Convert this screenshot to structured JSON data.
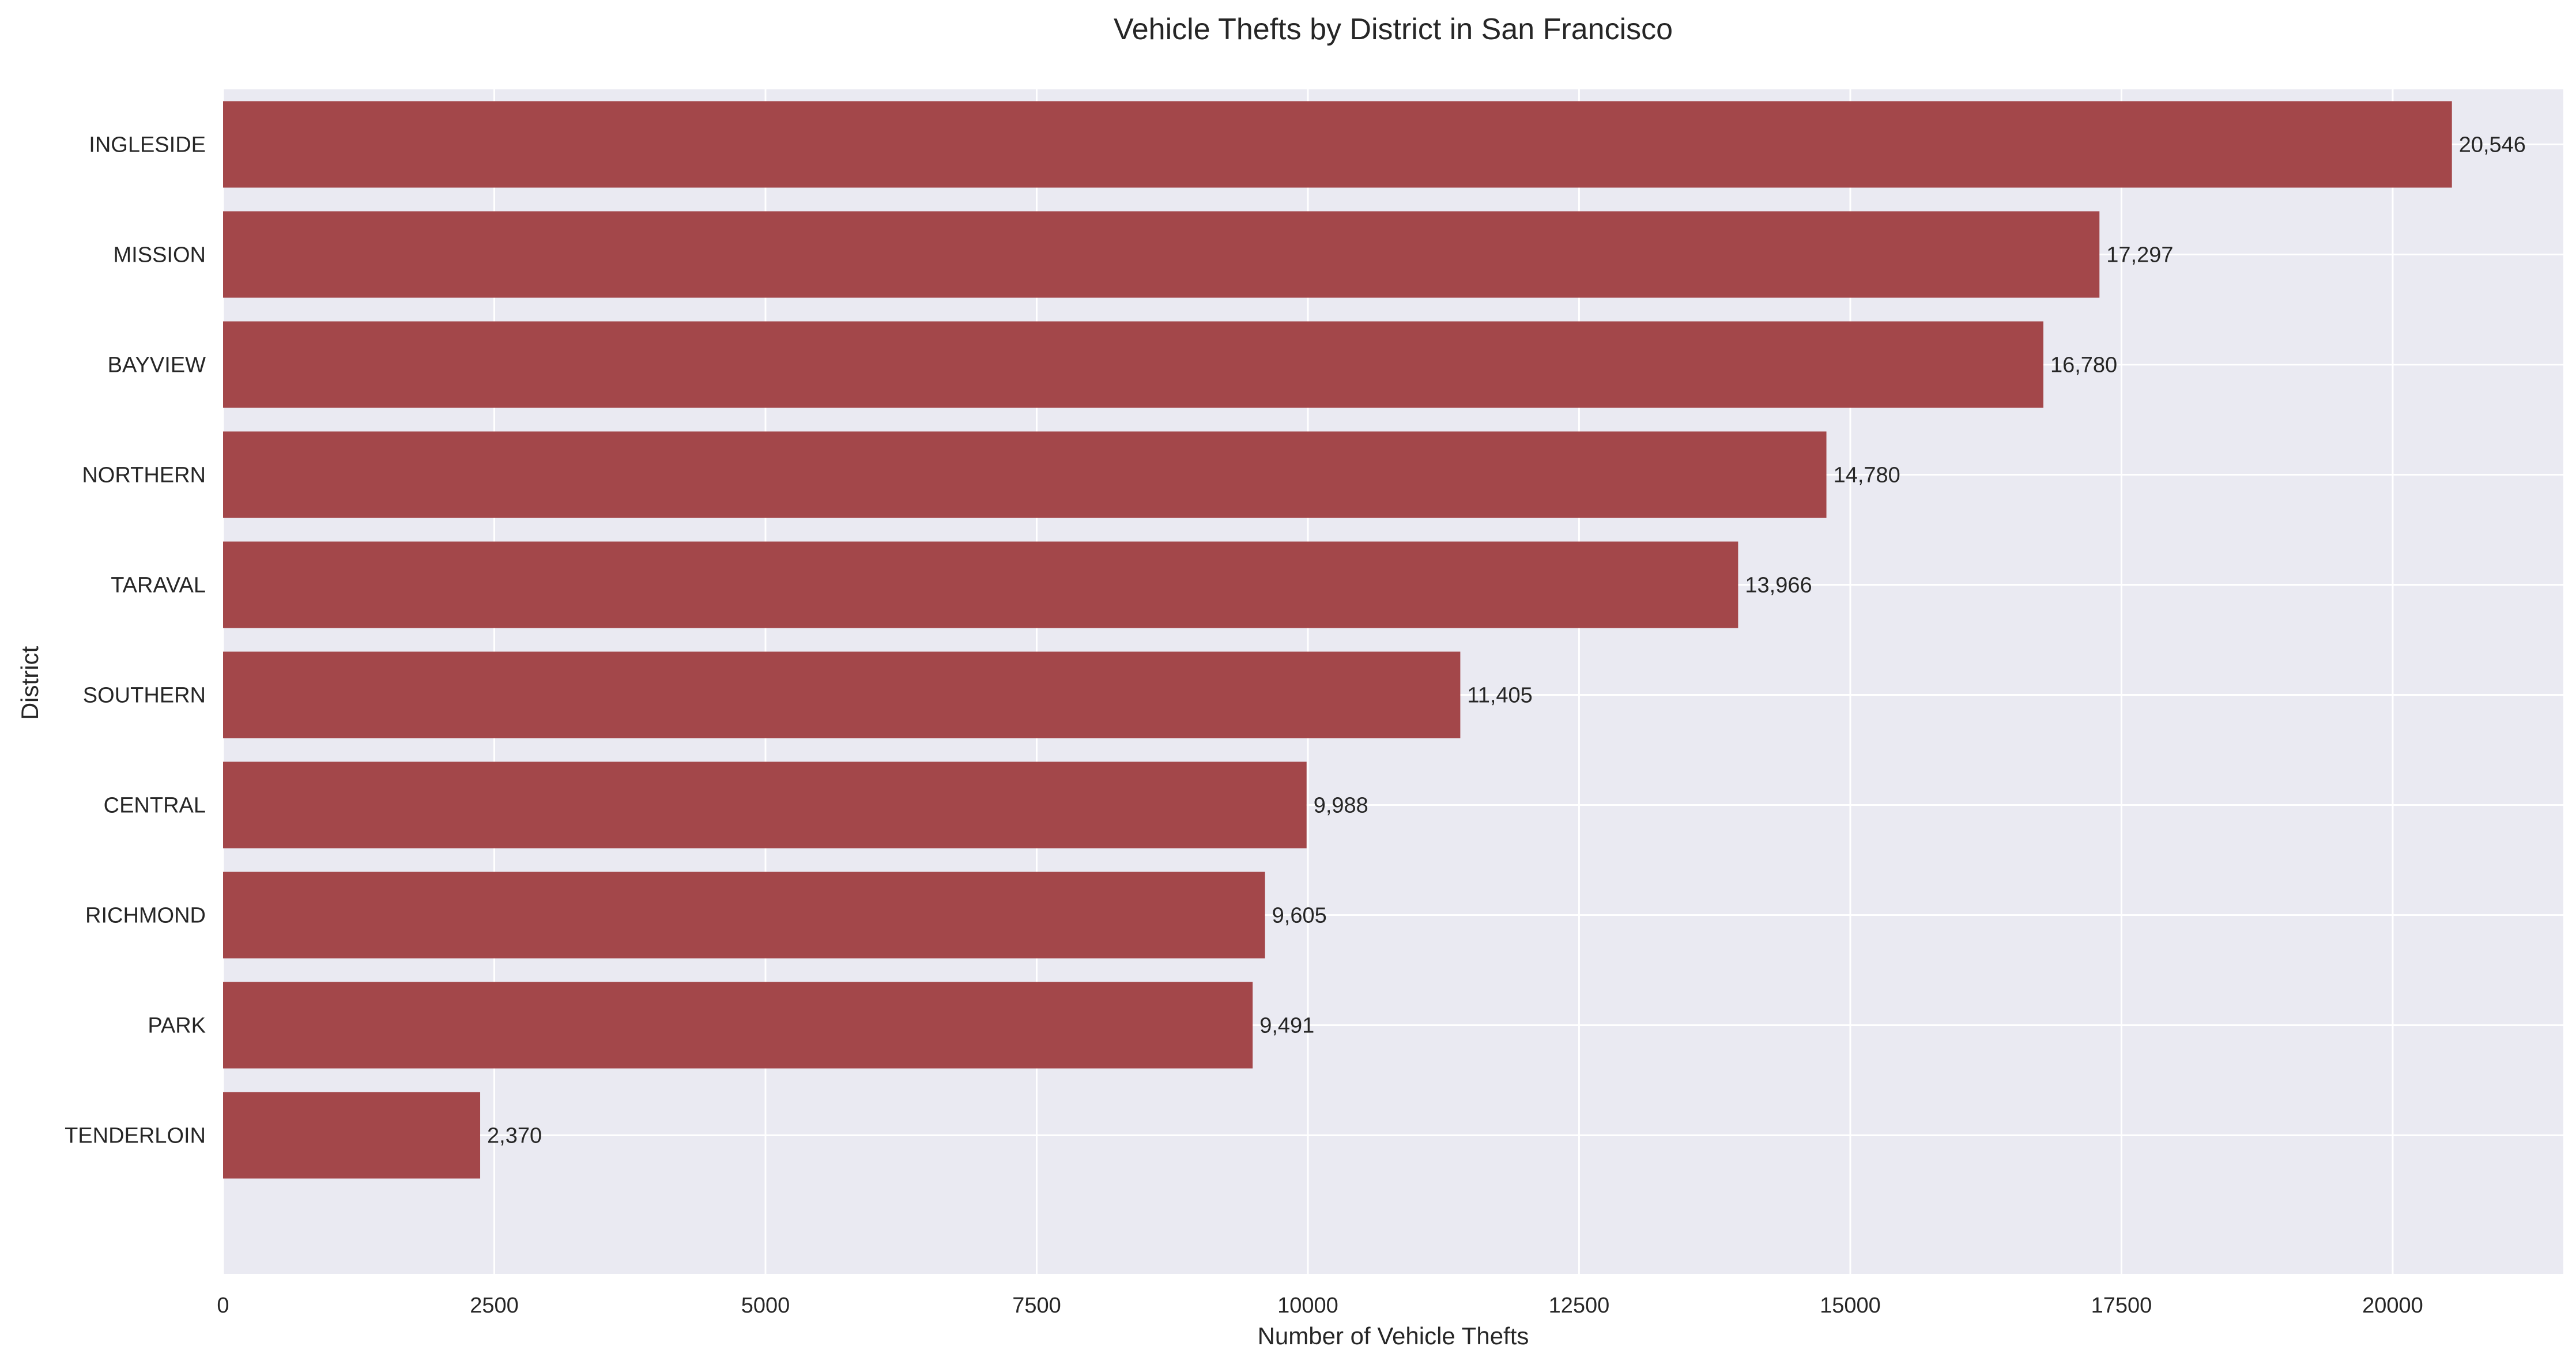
{
  "chart_data": {
    "type": "bar",
    "orientation": "horizontal",
    "title": "Vehicle Thefts by District in San Francisco",
    "xlabel": "Number of Vehicle Thefts",
    "ylabel": "District",
    "categories": [
      "INGLESIDE",
      "MISSION",
      "BAYVIEW",
      "NORTHERN",
      "TARAVAL",
      "SOUTHERN",
      "CENTRAL",
      "RICHMOND",
      "PARK",
      "TENDERLOIN"
    ],
    "values": [
      20546,
      17297,
      16780,
      14780,
      13966,
      11405,
      9988,
      9605,
      9491,
      2370
    ],
    "data_labels": [
      "20,546",
      "17,297",
      "16,780",
      "14,780",
      "13,966",
      "11,405",
      "9,988",
      "9,605",
      "9,491",
      "2,370"
    ],
    "xticks": [
      0,
      2500,
      5000,
      7500,
      10000,
      12500,
      15000,
      17500,
      20000
    ],
    "xtick_labels": [
      "0",
      "2500",
      "5000",
      "7500",
      "10000",
      "12500",
      "15000",
      "17500",
      "20000"
    ],
    "xlim": [
      0,
      21573
    ],
    "grid": true,
    "bar_color": "#a3474a",
    "background_color": "#eaeaf2",
    "grid_color": "#ffffff"
  }
}
